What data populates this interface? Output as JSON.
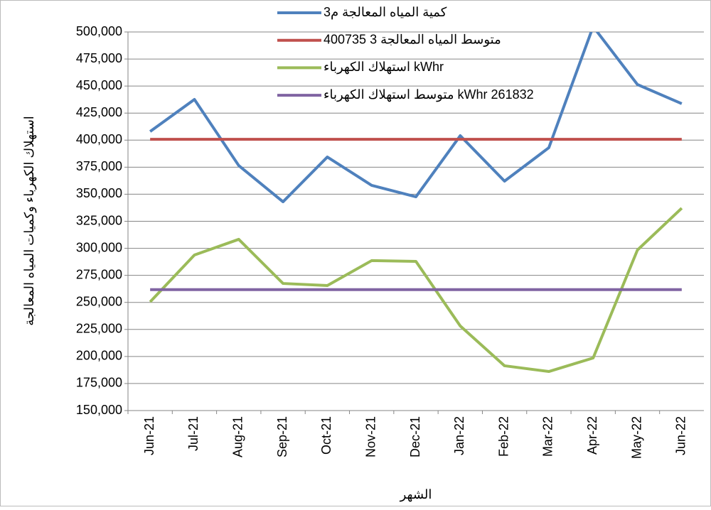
{
  "chart_data": {
    "type": "line",
    "y_label": "استهلاك الكهرباء وكميات المياه المعالجة",
    "x_label": "الشهر",
    "categories": [
      "Jun-21",
      "Jul-21",
      "Aug-21",
      "Sep-21",
      "Oct-21",
      "Nov-21",
      "Dec-21",
      "Jan-22",
      "Feb-22",
      "Mar-22",
      "Apr-22",
      "May-22",
      "Jun-22"
    ],
    "series": [
      {
        "name": "كمية المياه المعالجة م3",
        "color": "#4f81bd",
        "values": [
          408000,
          437600,
          376500,
          343000,
          384400,
          358200,
          347600,
          404100,
          362100,
          393000,
          505000,
          451400,
          433700
        ]
      },
      {
        "name": "متوسط المياه المعالجة 3  400735",
        "color": "#c0504d",
        "values": [
          400735,
          400735,
          400735,
          400735,
          400735,
          400735,
          400735,
          400735,
          400735,
          400735,
          400735,
          400735,
          400735
        ]
      },
      {
        "name": "استهلاك الكهرباء kWhr",
        "color": "#9bbb59",
        "values": [
          250500,
          293800,
          308300,
          267500,
          265600,
          288600,
          287900,
          228200,
          191400,
          186100,
          198600,
          298400,
          337100
        ]
      },
      {
        "name": "متوسط استهلاك الكهرباء kWhr 261832",
        "color": "#8064a2",
        "values": [
          261832,
          261832,
          261832,
          261832,
          261832,
          261832,
          261832,
          261832,
          261832,
          261832,
          261832,
          261832,
          261832
        ]
      }
    ],
    "ylim": [
      150000,
      500000
    ],
    "yticks": [
      {
        "value": 150000,
        "label": "150,000"
      },
      {
        "value": 175000,
        "label": "175,000"
      },
      {
        "value": 200000,
        "label": "200,000"
      },
      {
        "value": 225000,
        "label": "225,000"
      },
      {
        "value": 250000,
        "label": "250,000"
      },
      {
        "value": 275000,
        "label": "275,000"
      },
      {
        "value": 300000,
        "label": "300,000"
      },
      {
        "value": 325000,
        "label": "325,000"
      },
      {
        "value": 350000,
        "label": "350,000"
      },
      {
        "value": 375000,
        "label": "375,000"
      },
      {
        "value": 400000,
        "label": "400,000"
      },
      {
        "value": 425000,
        "label": "425,000"
      },
      {
        "value": 450000,
        "label": "450,000"
      },
      {
        "value": 475000,
        "label": "475,000"
      },
      {
        "value": 500000,
        "label": "500,000"
      }
    ],
    "grid": true
  }
}
